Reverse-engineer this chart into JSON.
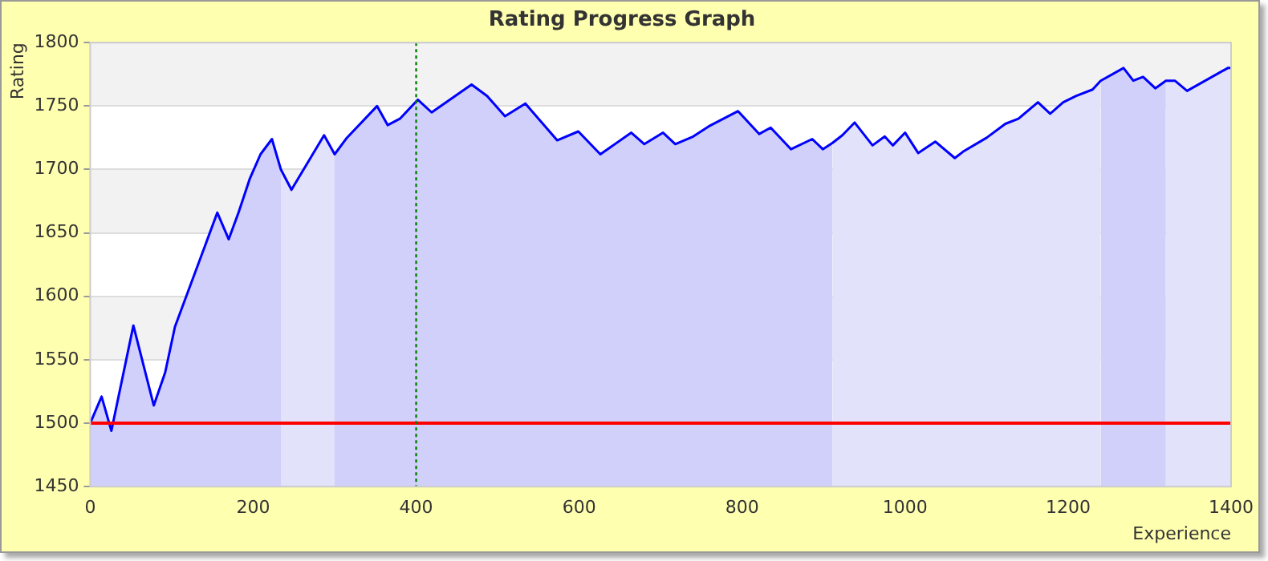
{
  "chart_data": {
    "type": "area",
    "title": "Rating Progress Graph",
    "xlabel": "Experience",
    "ylabel": "Rating",
    "series": [
      {
        "color": "#d0d0fa",
        "x": [
          0,
          14,
          26,
          53,
          78,
          92,
          104,
          156,
          170,
          182,
          196,
          209,
          223,
          234
        ],
        "values": [
          1500,
          1521,
          1494,
          1577,
          1514,
          1540,
          1576,
          1666,
          1645,
          1666,
          1693,
          1712,
          1724,
          1700
        ]
      },
      {
        "color": "#e2e2fa",
        "x": [
          234,
          247,
          287,
          300
        ],
        "values": [
          1700,
          1684,
          1727,
          1712
        ]
      },
      {
        "color": "#d0d0fa",
        "x": [
          300,
          315,
          352,
          365,
          380,
          402,
          419,
          468,
          487,
          509,
          534,
          573,
          599,
          626,
          664,
          680,
          703,
          718,
          740,
          759,
          795,
          821,
          835,
          860,
          886,
          899,
          911
        ],
        "values": [
          1712,
          1725,
          1750,
          1735,
          1740,
          1755,
          1745,
          1767,
          1758,
          1742,
          1752,
          1723,
          1730,
          1712,
          1729,
          1720,
          1729,
          1720,
          1726,
          1734,
          1746,
          1728,
          1733,
          1716,
          1724,
          1716,
          1721
        ]
      },
      {
        "color": "#e2e2fa",
        "x": [
          911,
          923,
          938,
          960,
          975,
          985,
          1000,
          1016,
          1037,
          1061,
          1071,
          1100,
          1123,
          1139,
          1163,
          1178,
          1194,
          1210,
          1230,
          1240
        ],
        "values": [
          1721,
          1727,
          1737,
          1719,
          1726,
          1719,
          1729,
          1713,
          1722,
          1709,
          1714,
          1725,
          1736,
          1740,
          1753,
          1744,
          1753,
          1758,
          1763,
          1770
        ]
      },
      {
        "color": "#d0d0fa",
        "x": [
          1240,
          1268,
          1280,
          1292,
          1307,
          1320
        ],
        "values": [
          1770,
          1780,
          1770,
          1773,
          1764,
          1770
        ]
      },
      {
        "color": "#e2e2fa",
        "x": [
          1320,
          1331,
          1346,
          1396,
          1400
        ],
        "values": [
          1770,
          1770,
          1762,
          1780,
          1780
        ]
      },
      {
        "type": "line",
        "color": "#0000ff",
        "x": [
          0,
          14,
          26,
          53,
          78,
          92,
          104,
          156,
          170,
          182,
          196,
          209,
          223,
          234,
          247,
          287,
          300,
          315,
          352,
          365,
          380,
          402,
          419,
          468,
          487,
          509,
          534,
          573,
          599,
          626,
          664,
          680,
          703,
          718,
          740,
          759,
          795,
          821,
          835,
          860,
          886,
          899,
          911,
          923,
          938,
          960,
          975,
          985,
          1000,
          1016,
          1037,
          1061,
          1071,
          1100,
          1123,
          1139,
          1163,
          1178,
          1194,
          1210,
          1230,
          1240,
          1268,
          1280,
          1292,
          1307,
          1320,
          1331,
          1346,
          1396,
          1400
        ],
        "values": [
          1500,
          1521,
          1494,
          1577,
          1514,
          1540,
          1576,
          1666,
          1645,
          1666,
          1693,
          1712,
          1724,
          1700,
          1684,
          1727,
          1712,
          1725,
          1750,
          1735,
          1740,
          1755,
          1745,
          1767,
          1758,
          1742,
          1752,
          1723,
          1730,
          1712,
          1729,
          1720,
          1729,
          1720,
          1726,
          1734,
          1746,
          1728,
          1733,
          1716,
          1724,
          1716,
          1721,
          1727,
          1737,
          1719,
          1726,
          1719,
          1729,
          1713,
          1722,
          1709,
          1714,
          1725,
          1736,
          1740,
          1753,
          1744,
          1753,
          1758,
          1763,
          1770,
          1780,
          1770,
          1773,
          1764,
          1770,
          1770,
          1762,
          1780,
          1780
        ]
      }
    ],
    "xlim": [
      0,
      1400
    ],
    "xticks": [
      0,
      200,
      400,
      600,
      800,
      1000,
      1200,
      1400
    ],
    "ylim": [
      1450,
      1800
    ],
    "yticks": [
      1450,
      1500,
      1550,
      1600,
      1650,
      1700,
      1750,
      1800
    ],
    "grid": "y",
    "ref_lines": [
      {
        "axis": "y",
        "value": 1500,
        "color": "#ff0000",
        "line_style": "solid"
      },
      {
        "axis": "x",
        "value": 400,
        "color": "#008000",
        "line_style": "dotted"
      }
    ]
  }
}
